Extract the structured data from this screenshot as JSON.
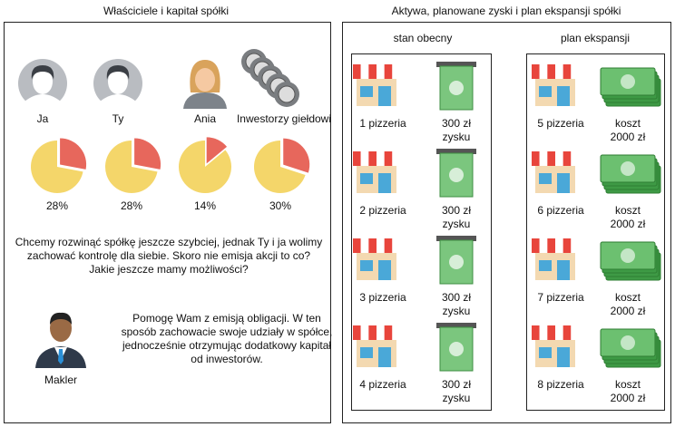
{
  "left": {
    "title": "Właściciele i kapitał spółki",
    "owners": [
      {
        "label": "Ja",
        "share": 28,
        "share_label": "28%"
      },
      {
        "label": "Ty",
        "share": 28,
        "share_label": "28%"
      },
      {
        "label": "Ania",
        "share": 14,
        "share_label": "14%"
      },
      {
        "label": "Inwestorzy giełdowi",
        "share": 30,
        "share_label": "30%"
      }
    ],
    "question": [
      "Chcemy rozwinąć spółkę jeszcze szybciej, jednak Ty i ja wolimy",
      "zachować kontrolę dla siebie. Skoro nie emisja akcji to co?",
      "Jakie jeszcze mamy możliwości?"
    ],
    "broker": {
      "label": "Makler",
      "answer": [
        "Pomogę Wam z emisją obligacji. W ten",
        "sposób zachowacie swoje udziały w spółce,",
        "jednocześnie otrzymując dodatkowy kapitał",
        "od inwestorów."
      ]
    }
  },
  "right": {
    "title": "Aktywa, planowane zyski i plan ekspansji spółki",
    "columns": [
      {
        "title": "stan obecny",
        "rows": [
          {
            "store": "1 pizzeria",
            "money": [
              "300 zł",
              "zysku"
            ]
          },
          {
            "store": "2 pizzeria",
            "money": [
              "300 zł",
              "zysku"
            ]
          },
          {
            "store": "3 pizzeria",
            "money": [
              "300 zł",
              "zysku"
            ]
          },
          {
            "store": "4 pizzeria",
            "money": [
              "300 zł",
              "zysku"
            ]
          }
        ]
      },
      {
        "title": "plan ekspansji",
        "rows": [
          {
            "store": "5 pizzeria",
            "money": [
              "koszt",
              "2000 zł"
            ]
          },
          {
            "store": "6 pizzeria",
            "money": [
              "koszt",
              "2000 zł"
            ]
          },
          {
            "store": "7 pizzeria",
            "money": [
              "koszt",
              "2000 zł"
            ]
          },
          {
            "store": "8 pizzeria",
            "money": [
              "koszt",
              "2000 zł"
            ]
          }
        ]
      }
    ]
  }
}
